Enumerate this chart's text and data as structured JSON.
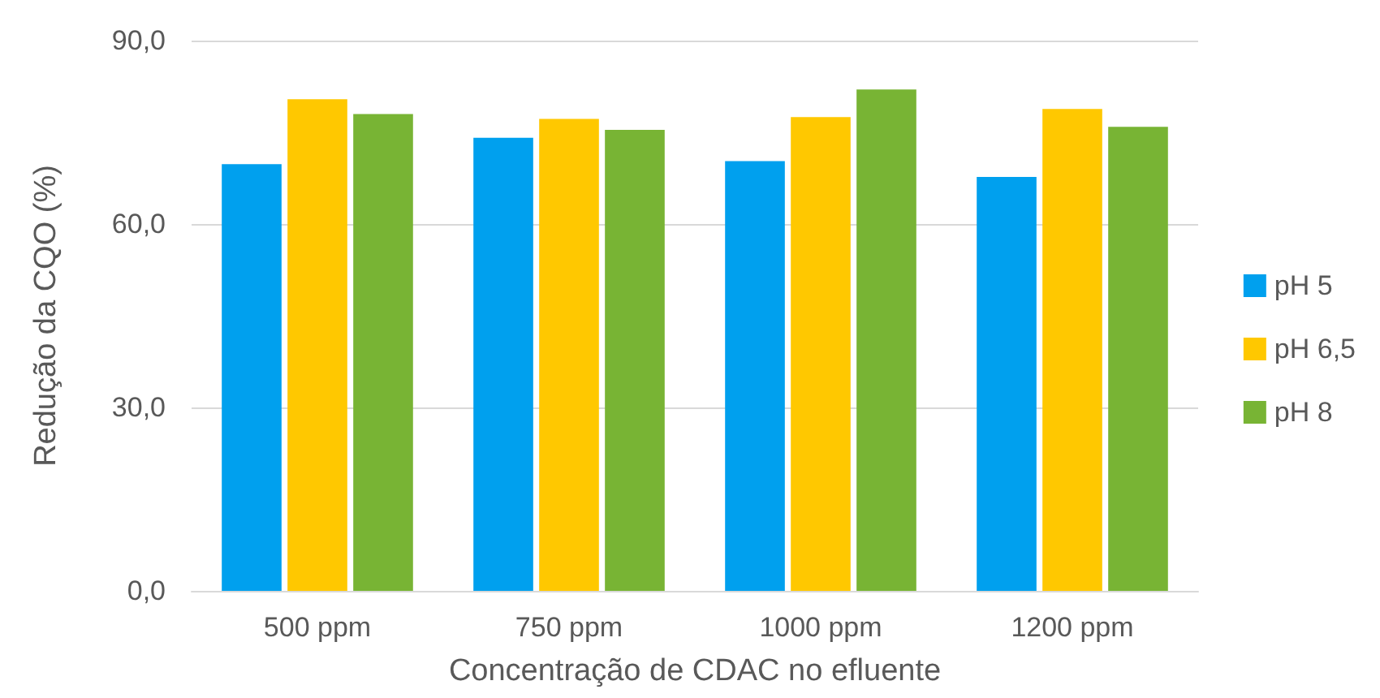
{
  "chart_data": {
    "type": "bar",
    "xlabel": "Concentração de CDAC no efluente",
    "ylabel": "Redução da CQO (%)",
    "categories": [
      "500 ppm",
      "750 ppm",
      "1000 ppm",
      "1200 ppm"
    ],
    "series": [
      {
        "name": "pH 5",
        "color": "#00a0ee",
        "values": [
          69.8,
          74.1,
          70.3,
          67.7
        ]
      },
      {
        "name": "pH 6,5",
        "color": "#ffc800",
        "values": [
          80.4,
          77.2,
          77.5,
          78.8
        ]
      },
      {
        "name": "pH 8",
        "color": "#78b434",
        "values": [
          78.0,
          75.4,
          82.0,
          75.9
        ]
      }
    ],
    "ylim": [
      0,
      90
    ],
    "yticks": [
      {
        "value": 0,
        "label": "0,0"
      },
      {
        "value": 30,
        "label": "30,0"
      },
      {
        "value": 60,
        "label": "60,0"
      },
      {
        "value": 90,
        "label": "90,0"
      }
    ],
    "grid": "y",
    "legend": "right"
  }
}
